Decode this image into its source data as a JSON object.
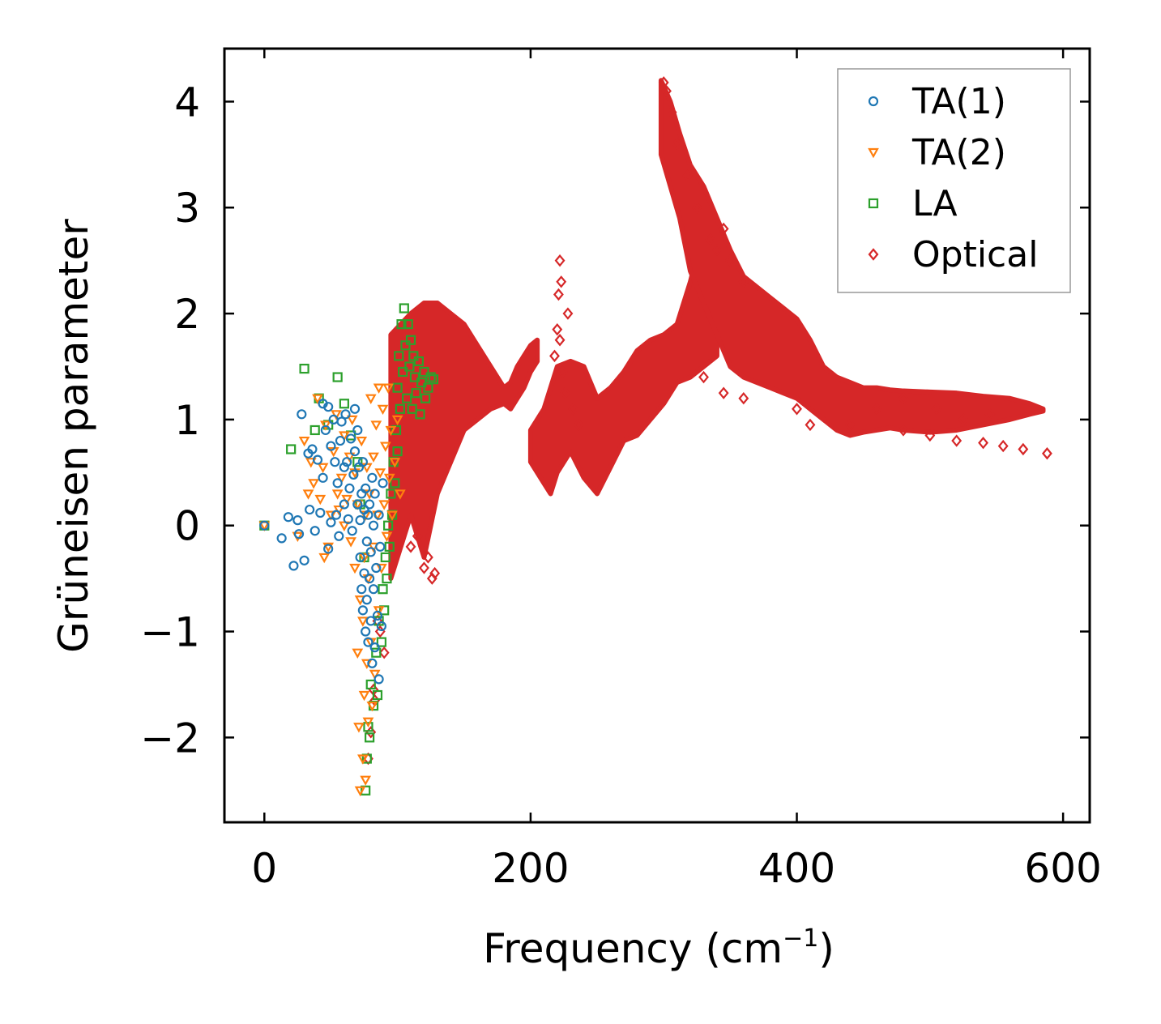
{
  "chart_data": {
    "type": "scatter",
    "title": "",
    "xlabel": "Frequency (cm",
    "xlabel_sup": "−1",
    "xlabel_close": ")",
    "ylabel": "Grüneisen parameter",
    "xlim": [
      -30,
      620
    ],
    "ylim": [
      -2.8,
      4.5
    ],
    "xticks": [
      0,
      200,
      400,
      600
    ],
    "xtick_labels": [
      "0",
      "200",
      "400",
      "600"
    ],
    "yticks": [
      -2,
      -1,
      0,
      1,
      2,
      3,
      4
    ],
    "ytick_labels": [
      "−2",
      "−1",
      "0",
      "1",
      "2",
      "3",
      "4"
    ],
    "grid": false,
    "legend_position": "top-right",
    "series": [
      {
        "name": "TA(1)",
        "marker": "circle",
        "color": "#1f77b4",
        "points": [
          [
            0,
            0
          ],
          [
            13,
            -0.12
          ],
          [
            18,
            0.08
          ],
          [
            22,
            -0.38
          ],
          [
            25,
            0.05
          ],
          [
            26,
            -0.08
          ],
          [
            28,
            1.05
          ],
          [
            30,
            -0.33
          ],
          [
            33,
            0.68
          ],
          [
            34,
            0.15
          ],
          [
            36,
            0.72
          ],
          [
            38,
            -0.05
          ],
          [
            40,
            0.62
          ],
          [
            42,
            0.12
          ],
          [
            44,
            0.45
          ],
          [
            44,
            1.15
          ],
          [
            46,
            0.9
          ],
          [
            48,
            1.12
          ],
          [
            48,
            -0.22
          ],
          [
            50,
            0.03
          ],
          [
            50,
            0.75
          ],
          [
            52,
            1.0
          ],
          [
            53,
            0.6
          ],
          [
            54,
            0.1
          ],
          [
            55,
            0.4
          ],
          [
            56,
            -0.1
          ],
          [
            57,
            0.8
          ],
          [
            58,
            0.98
          ],
          [
            60,
            0.2
          ],
          [
            60,
            0.55
          ],
          [
            61,
            1.05
          ],
          [
            62,
            0.6
          ],
          [
            63,
            0.06
          ],
          [
            64,
            0.35
          ],
          [
            65,
            0.82
          ],
          [
            66,
            -0.05
          ],
          [
            67,
            0.48
          ],
          [
            68,
            1.1
          ],
          [
            68,
            0.7
          ],
          [
            70,
            0.9
          ],
          [
            70,
            0.2
          ],
          [
            71,
            0.55
          ],
          [
            72,
            -0.3
          ],
          [
            72,
            0.05
          ],
          [
            73,
            0.3
          ],
          [
            73,
            -0.6
          ],
          [
            74,
            0.6
          ],
          [
            74,
            -0.8
          ],
          [
            75,
            -0.45
          ],
          [
            75,
            0.15
          ],
          [
            76,
            -1.0
          ],
          [
            76,
            0.35
          ],
          [
            77,
            -0.15
          ],
          [
            77,
            -0.7
          ],
          [
            78,
            0.1
          ],
          [
            78,
            -1.1
          ],
          [
            79,
            -0.5
          ],
          [
            79,
            0.2
          ],
          [
            80,
            -0.9
          ],
          [
            80,
            -0.25
          ],
          [
            81,
            0.45
          ],
          [
            81,
            -1.3
          ],
          [
            82,
            -0.6
          ],
          [
            82,
            0.0
          ],
          [
            83,
            -1.15
          ],
          [
            83,
            0.3
          ],
          [
            84,
            -0.4
          ],
          [
            85,
            -0.85
          ],
          [
            86,
            0.1
          ],
          [
            86,
            -1.45
          ],
          [
            87,
            -0.2
          ],
          [
            88,
            -0.95
          ],
          [
            89,
            0.4
          ]
        ]
      },
      {
        "name": "TA(2)",
        "marker": "triangle-down",
        "color": "#ff7f0e",
        "points": [
          [
            0,
            0
          ],
          [
            25,
            -0.1
          ],
          [
            30,
            0.8
          ],
          [
            33,
            0.3
          ],
          [
            35,
            0.6
          ],
          [
            37,
            0.4
          ],
          [
            40,
            1.2
          ],
          [
            42,
            0.25
          ],
          [
            44,
            0.55
          ],
          [
            45,
            -0.3
          ],
          [
            46,
            0.95
          ],
          [
            48,
            -0.2
          ],
          [
            50,
            0.1
          ],
          [
            52,
            0.7
          ],
          [
            54,
            1.05
          ],
          [
            55,
            0.3
          ],
          [
            56,
            0.15
          ],
          [
            58,
            0.45
          ],
          [
            60,
            0.85
          ],
          [
            60,
            0.0
          ],
          [
            62,
            0.25
          ],
          [
            64,
            0.65
          ],
          [
            65,
            -0.15
          ],
          [
            66,
            1.0
          ],
          [
            68,
            -0.4
          ],
          [
            68,
            0.5
          ],
          [
            70,
            -1.2
          ],
          [
            70,
            0.2
          ],
          [
            71,
            -1.9
          ],
          [
            72,
            -2.5
          ],
          [
            72,
            -0.7
          ],
          [
            73,
            0.8
          ],
          [
            74,
            -2.2
          ],
          [
            74,
            -0.9
          ],
          [
            75,
            -1.6
          ],
          [
            75,
            -0.3
          ],
          [
            76,
            -2.4
          ],
          [
            76,
            0.1
          ],
          [
            77,
            -1.3
          ],
          [
            77,
            0.55
          ],
          [
            78,
            -1.85
          ],
          [
            78,
            -0.5
          ],
          [
            79,
            0.3
          ],
          [
            80,
            -1.1
          ],
          [
            80,
            1.2
          ],
          [
            81,
            -1.7
          ],
          [
            82,
            -0.2
          ],
          [
            82,
            0.65
          ],
          [
            83,
            -1.4
          ],
          [
            84,
            0.95
          ],
          [
            85,
            0.1
          ],
          [
            86,
            -0.8
          ],
          [
            86,
            1.3
          ],
          [
            87,
            0.5
          ],
          [
            88,
            -0.4
          ],
          [
            89,
            1.1
          ],
          [
            90,
            0.2
          ],
          [
            91,
            0.75
          ],
          [
            92,
            -0.1
          ],
          [
            93,
            1.3
          ],
          [
            94,
            0.45
          ],
          [
            95,
            0.9
          ],
          [
            96,
            0.1
          ],
          [
            98,
            0.6
          ],
          [
            100,
            1.0
          ],
          [
            102,
            0.3
          ]
        ]
      },
      {
        "name": "LA",
        "marker": "square",
        "color": "#2ca02c",
        "points": [
          [
            0,
            0
          ],
          [
            20,
            0.72
          ],
          [
            30,
            1.48
          ],
          [
            38,
            0.9
          ],
          [
            41,
            1.2
          ],
          [
            48,
            0.95
          ],
          [
            55,
            1.4
          ],
          [
            60,
            1.15
          ],
          [
            65,
            0.85
          ],
          [
            70,
            0.6
          ],
          [
            72,
            0.2
          ],
          [
            75,
            -0.3
          ],
          [
            76,
            -2.5
          ],
          [
            77,
            -2.2
          ],
          [
            78,
            -1.9
          ],
          [
            79,
            -2.0
          ],
          [
            80,
            -1.5
          ],
          [
            82,
            -1.7
          ],
          [
            84,
            -1.2
          ],
          [
            85,
            -1.6
          ],
          [
            86,
            -0.9
          ],
          [
            88,
            -1.1
          ],
          [
            89,
            -0.6
          ],
          [
            90,
            -0.8
          ],
          [
            91,
            -0.3
          ],
          [
            92,
            -0.5
          ],
          [
            93,
            0.0
          ],
          [
            94,
            -0.2
          ],
          [
            95,
            0.3
          ],
          [
            96,
            0.1
          ],
          [
            97,
            0.6
          ],
          [
            98,
            0.4
          ],
          [
            99,
            0.9
          ],
          [
            100,
            1.3
          ],
          [
            100,
            0.7
          ],
          [
            101,
            1.6
          ],
          [
            102,
            1.1
          ],
          [
            103,
            1.9
          ],
          [
            104,
            1.45
          ],
          [
            105,
            2.05
          ],
          [
            106,
            1.7
          ],
          [
            107,
            1.2
          ],
          [
            108,
            1.9
          ],
          [
            109,
            1.5
          ],
          [
            110,
            1.75
          ],
          [
            111,
            1.1
          ],
          [
            112,
            1.6
          ],
          [
            113,
            1.4
          ],
          [
            114,
            1.25
          ],
          [
            116,
            1.55
          ],
          [
            117,
            1.05
          ],
          [
            118,
            1.35
          ],
          [
            120,
            1.45
          ],
          [
            121,
            1.2
          ],
          [
            123,
            1.3
          ],
          [
            125,
            1.4
          ],
          [
            127,
            1.38
          ]
        ]
      },
      {
        "name": "Optical",
        "marker": "diamond",
        "color": "#d62728",
        "bands": [
          {
            "x": [
              95,
              110,
              120,
              130,
              140,
              150,
              160,
              170,
              180,
              185,
              190,
              195,
              200,
              205
            ],
            "lo": [
              -0.5,
              0.1,
              -0.3,
              0.3,
              0.6,
              0.9,
              1.0,
              1.1,
              1.15,
              1.1,
              1.2,
              1.3,
              1.45,
              1.55
            ],
            "hi": [
              1.8,
              2.0,
              2.1,
              2.1,
              2.0,
              1.9,
              1.7,
              1.5,
              1.3,
              1.35,
              1.5,
              1.6,
              1.7,
              1.75
            ]
          },
          {
            "x": [
              200,
              210,
              215,
              220,
              230,
              240,
              250,
              260,
              270,
              280,
              290,
              300,
              310,
              320,
              330,
              340
            ],
            "lo": [
              0.6,
              0.4,
              0.3,
              0.5,
              0.7,
              0.45,
              0.3,
              0.55,
              0.8,
              0.85,
              1.0,
              1.15,
              1.35,
              1.4,
              1.5,
              1.6
            ],
            "hi": [
              0.9,
              1.1,
              1.3,
              1.5,
              1.55,
              1.5,
              1.2,
              1.3,
              1.45,
              1.65,
              1.75,
              1.8,
              1.9,
              2.3,
              2.8,
              2.5
            ]
          },
          {
            "x": [
              298,
              305,
              312,
              320,
              330,
              340,
              350,
              360,
              370,
              380,
              390,
              400,
              410,
              420,
              430,
              440,
              450,
              460,
              470,
              480,
              500,
              520,
              540,
              560,
              575,
              585
            ],
            "lo": [
              3.5,
              3.2,
              2.9,
              2.4,
              2.1,
              1.8,
              1.5,
              1.4,
              1.35,
              1.3,
              1.25,
              1.2,
              1.1,
              1.0,
              0.9,
              0.85,
              0.88,
              0.9,
              0.92,
              0.9,
              0.88,
              0.9,
              0.95,
              1.0,
              1.05,
              1.08
            ],
            "hi": [
              4.2,
              4.0,
              3.7,
              3.4,
              3.2,
              2.9,
              2.6,
              2.35,
              2.25,
              2.15,
              2.05,
              1.95,
              1.75,
              1.5,
              1.4,
              1.35,
              1.3,
              1.3,
              1.28,
              1.27,
              1.26,
              1.25,
              1.22,
              1.2,
              1.15,
              1.1
            ]
          }
        ],
        "points": [
          [
            110,
            -0.2
          ],
          [
            115,
            -0.1
          ],
          [
            120,
            -0.4
          ],
          [
            123,
            -0.3
          ],
          [
            126,
            -0.5
          ],
          [
            128,
            -0.45
          ],
          [
            85,
            -0.9
          ],
          [
            87,
            -1.0
          ],
          [
            90,
            -1.2
          ],
          [
            82,
            -1.55
          ],
          [
            83,
            -1.65
          ],
          [
            80,
            -1.95
          ],
          [
            78,
            -2.2
          ],
          [
            222,
            2.5
          ],
          [
            223,
            2.3
          ],
          [
            221,
            2.18
          ],
          [
            220,
            1.85
          ],
          [
            222,
            1.75
          ],
          [
            228,
            2.0
          ],
          [
            218,
            1.6
          ],
          [
            224,
            1.45
          ],
          [
            226,
            1.25
          ],
          [
            232,
            1.1
          ],
          [
            236,
            0.95
          ],
          [
            480,
            0.9
          ],
          [
            500,
            0.85
          ],
          [
            520,
            0.8
          ],
          [
            540,
            0.78
          ],
          [
            555,
            0.75
          ],
          [
            570,
            0.72
          ],
          [
            588,
            0.68
          ],
          [
            300,
            4.18
          ],
          [
            302,
            4.1
          ],
          [
            306,
            3.9
          ],
          [
            310,
            3.6
          ],
          [
            318,
            3.3
          ],
          [
            325,
            3.0
          ],
          [
            335,
            2.7
          ],
          [
            340,
            2.6
          ],
          [
            345,
            2.8
          ],
          [
            350,
            2.5
          ],
          [
            360,
            2.3
          ],
          [
            330,
            1.4
          ],
          [
            345,
            1.25
          ],
          [
            360,
            1.2
          ],
          [
            400,
            1.1
          ],
          [
            410,
            0.95
          ],
          [
            440,
            0.95
          ],
          [
            460,
            1.1
          ],
          [
            480,
            1.2
          ],
          [
            505,
            1.1
          ],
          [
            525,
            1.0
          ],
          [
            545,
            1.05
          ]
        ]
      }
    ]
  }
}
